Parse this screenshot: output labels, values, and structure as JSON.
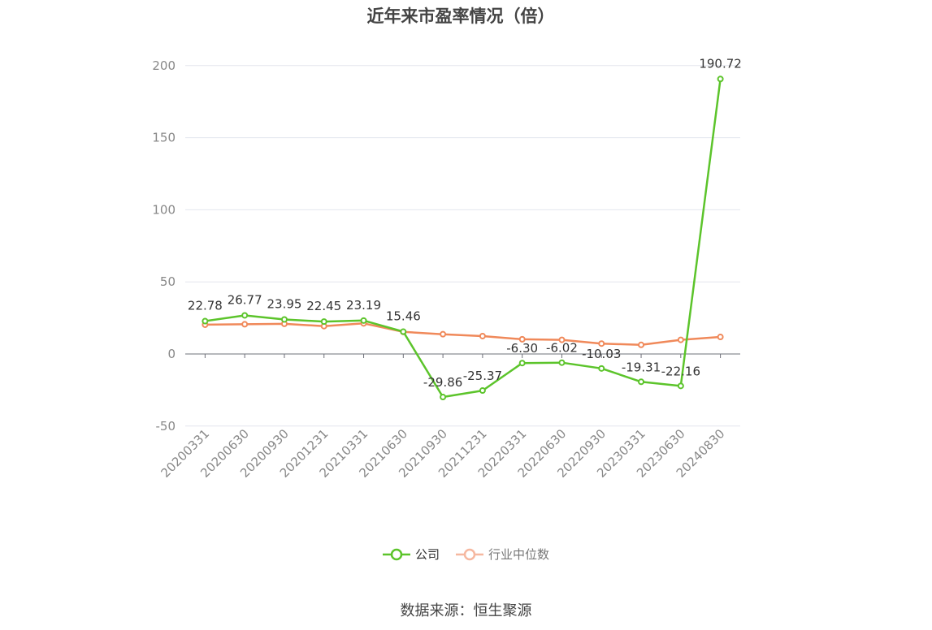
{
  "chart_data": {
    "type": "line",
    "title": "近年来市盈率情况（倍）",
    "categories": [
      "20200331",
      "20200630",
      "20200930",
      "20201231",
      "20210331",
      "20210630",
      "20210930",
      "20211231",
      "20220331",
      "20220630",
      "20220930",
      "20230331",
      "20230630",
      "20240830"
    ],
    "series": [
      {
        "name": "公司",
        "color": "#5cc42b",
        "values": [
          22.78,
          26.77,
          23.95,
          22.45,
          23.19,
          15.46,
          -29.86,
          -25.37,
          -6.3,
          -6.02,
          -10.03,
          -19.31,
          -22.16,
          190.72
        ],
        "labels": [
          "22.78",
          "26.77",
          "23.95",
          "22.45",
          "23.19",
          "15.46",
          "-29.86",
          "-25.37",
          "-6.30",
          "-6.02",
          "-10.03",
          "-19.31",
          "-22.16",
          "190.72"
        ]
      },
      {
        "name": "行业中位数",
        "color": "#f0895a",
        "values": [
          20.3,
          20.6,
          20.9,
          19.3,
          21.2,
          15.3,
          13.7,
          12.4,
          10.2,
          9.8,
          7.2,
          6.3,
          9.8,
          11.8
        ]
      }
    ],
    "yticks": [
      "200",
      "150",
      "100",
      "50",
      "0",
      "-50"
    ],
    "ylim": [
      -50,
      200
    ],
    "grid": true,
    "legend_position": "bottom"
  },
  "legend": {
    "company": "公司",
    "industry": "行业中位数"
  },
  "source": "数据来源：恒生聚源"
}
